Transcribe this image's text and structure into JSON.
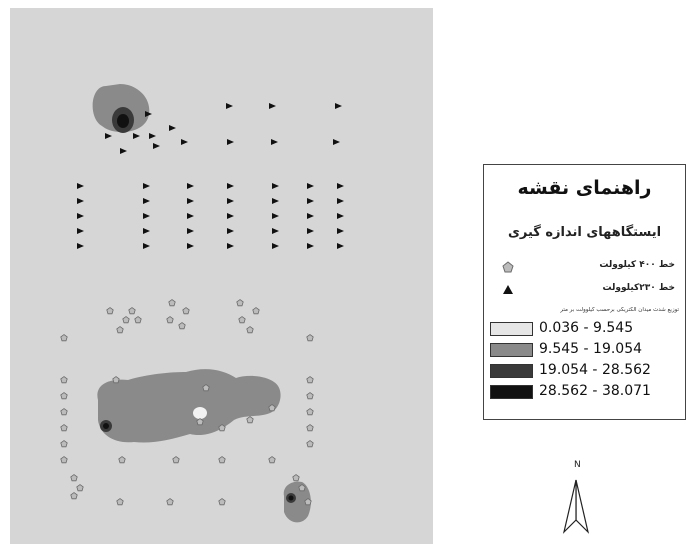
{
  "legend": {
    "title": "راهنمای نقشه",
    "subtitle": "ایستگاههای اندازه گیری",
    "line_400_label": "خط ۴۰۰ کیلوولت",
    "line_230_label": "خط ۲۳۰کیلوولت",
    "distribution_note": "توزیع شدت میدان الکتریکی برحسب کیلوولت بر متر",
    "classes": [
      {
        "label": "0.036 - 9.545",
        "color": "#e6e6e6"
      },
      {
        "label": "9.545 - 19.054",
        "color": "#8a8a8a"
      },
      {
        "label": "19.054 - 28.562",
        "color": "#3a3a3a"
      },
      {
        "label": "28.562 - 38.071",
        "color": "#111111"
      }
    ]
  },
  "north_label": "N",
  "map": {
    "background_color": "#d6d6d6",
    "station_symbols": {
      "line_400": "pentagon-icon",
      "line_230": "triangle-icon"
    }
  }
}
